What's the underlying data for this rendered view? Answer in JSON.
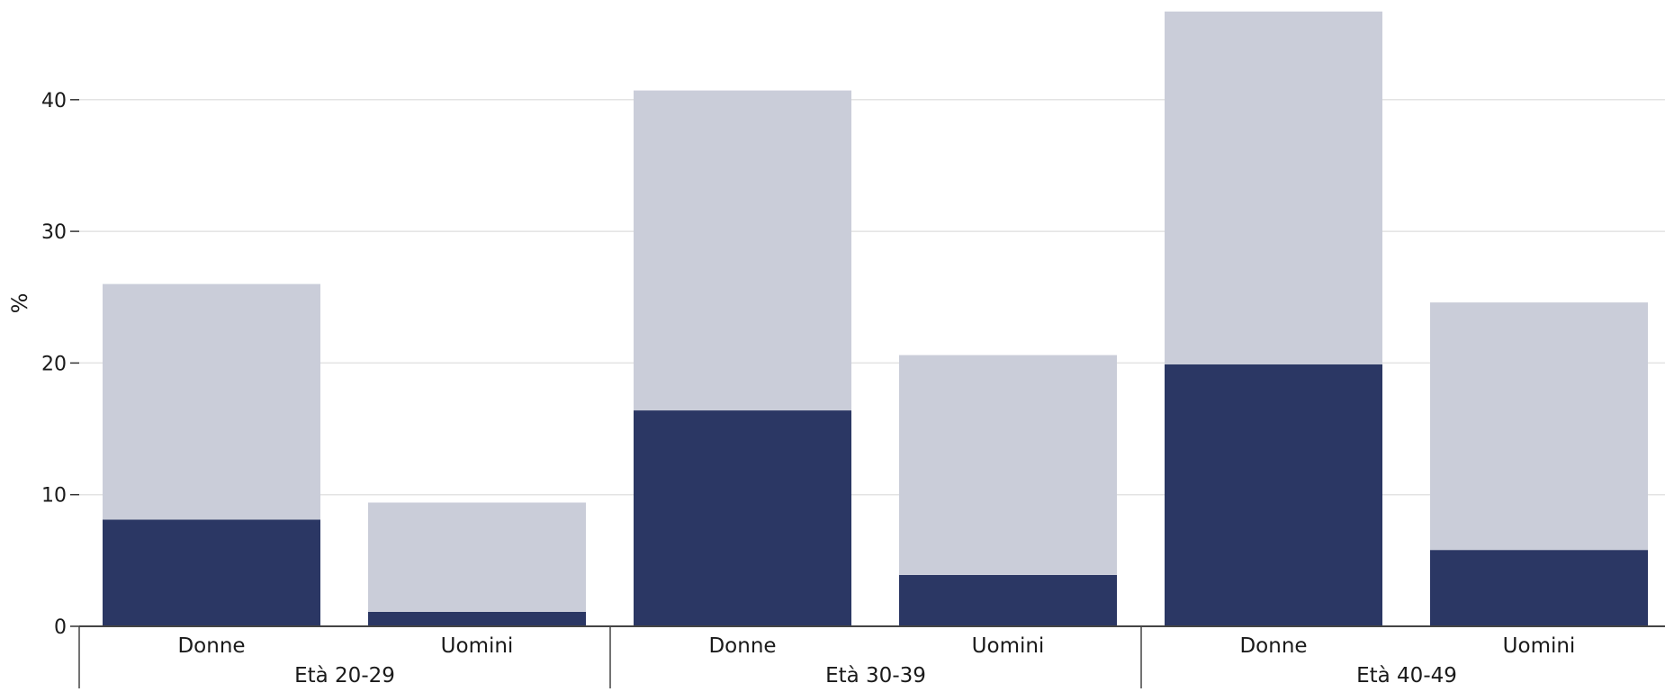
{
  "chart_data": {
    "type": "bar",
    "stacked": true,
    "title": "",
    "xlabel": "",
    "ylabel": "%",
    "ylim": [
      0,
      47
    ],
    "yticks": [
      "0",
      "10",
      "20",
      "30",
      "40"
    ],
    "grid": true,
    "groups": [
      "Età 20-29",
      "Età 30-39",
      "Età 40-49"
    ],
    "categories": [
      "Donne",
      "Uomini",
      "Donne",
      "Uomini",
      "Donne",
      "Uomini"
    ],
    "series": [
      {
        "values": [
          8.1,
          1.1,
          16.4,
          3.9,
          19.9,
          5.8
        ],
        "color": "#2b3764"
      },
      {
        "values": [
          17.9,
          8.3,
          24.3,
          16.7,
          26.8,
          18.8
        ],
        "color": "#cacdd9"
      }
    ]
  }
}
